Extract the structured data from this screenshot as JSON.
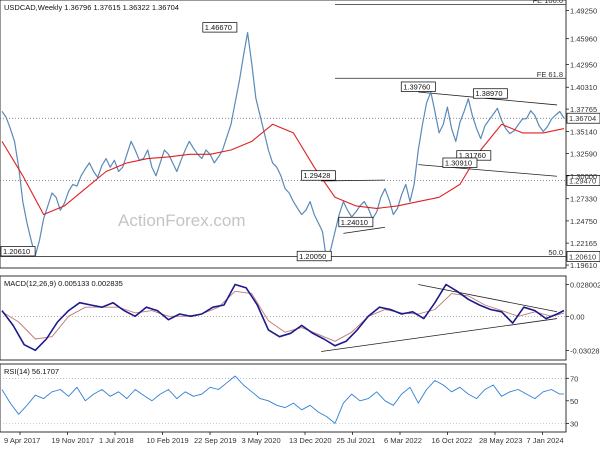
{
  "header": {
    "price": "USDCAD,Weekly  1.36796 1.37615 1.36322 1.36704",
    "macd": "MACD(12,26,9) 0.005133 0.002835",
    "rsi": "RSI(14) 56.1707"
  },
  "watermark": "ActionForex.com",
  "colors": {
    "price_line": "#5a8ab8",
    "ma_line": "#e02020",
    "macd_line": "#1a1a8c",
    "signal_line": "#c07878",
    "rsi_line": "#2f80d6",
    "trend_line": "#222222",
    "fib_line": "#444444"
  },
  "chart_data": [
    {
      "type": "line",
      "pane": "price",
      "series": [
        {
          "role": "price",
          "x": [
            0,
            3,
            6,
            9,
            12,
            15,
            18,
            21,
            24,
            27,
            30,
            33,
            36,
            39,
            42,
            45,
            48,
            51,
            54,
            57,
            60,
            63,
            66,
            69,
            72,
            75,
            78,
            81,
            84,
            87,
            90,
            93,
            96,
            99,
            102,
            105,
            108,
            111,
            114,
            117,
            120,
            123,
            126,
            129,
            132,
            135,
            138,
            141,
            144,
            147,
            150,
            153,
            156,
            159,
            162,
            165,
            168,
            171,
            174,
            177,
            180,
            183,
            186,
            189,
            192,
            195,
            198,
            201,
            204,
            207,
            210,
            213,
            216,
            219,
            222,
            225,
            228,
            231,
            234,
            237,
            240,
            243,
            246,
            249,
            252,
            255,
            258,
            261,
            264,
            267,
            270,
            273,
            276,
            279,
            282,
            285,
            288,
            291,
            294,
            297,
            300,
            303,
            306,
            309,
            312,
            315,
            318,
            321,
            324,
            327,
            330,
            333,
            336,
            339,
            342,
            345,
            348,
            351,
            354,
            357,
            360,
            363,
            366,
            369,
            372,
            375,
            378,
            381,
            384,
            387,
            390,
            393,
            396,
            399,
            402,
            405
          ],
          "values": [
            1.375,
            1.368,
            1.355,
            1.34,
            1.31,
            1.27,
            1.245,
            1.225,
            1.207,
            1.225,
            1.25,
            1.265,
            1.28,
            1.275,
            1.26,
            1.268,
            1.282,
            1.29,
            1.288,
            1.3,
            1.308,
            1.315,
            1.305,
            1.298,
            1.312,
            1.32,
            1.31,
            1.318,
            1.305,
            1.31,
            1.325,
            1.34,
            1.33,
            1.318,
            1.32,
            1.33,
            1.31,
            1.3,
            1.315,
            1.33,
            1.325,
            1.315,
            1.305,
            1.318,
            1.33,
            1.34,
            1.332,
            1.325,
            1.32,
            1.33,
            1.325,
            1.315,
            1.322,
            1.33,
            1.345,
            1.36,
            1.385,
            1.41,
            1.44,
            1.4667,
            1.43,
            1.39,
            1.37,
            1.35,
            1.33,
            1.315,
            1.31,
            1.3,
            1.285,
            1.28,
            1.27,
            1.262,
            1.255,
            1.26,
            1.27,
            1.255,
            1.245,
            1.235,
            1.2005,
            1.215,
            1.235,
            1.255,
            1.27,
            1.26,
            1.252,
            1.258,
            1.265,
            1.27,
            1.262,
            1.25,
            1.258,
            1.275,
            1.285,
            1.272,
            1.255,
            1.262,
            1.278,
            1.29,
            1.27,
            1.29,
            1.33,
            1.36,
            1.385,
            1.3976,
            1.375,
            1.35,
            1.36,
            1.38,
            1.355,
            1.34,
            1.362,
            1.375,
            1.3897,
            1.37,
            1.355,
            1.3432,
            1.3581,
            1.3651,
            1.3715,
            1.3786,
            1.3645,
            1.3551,
            1.3491,
            1.3524,
            1.3594,
            1.3661,
            1.3665,
            1.3758,
            1.3702,
            1.3584,
            1.3516,
            1.3571,
            1.3661,
            1.3708,
            1.3749,
            1.367
          ]
        },
        {
          "role": "moving_average",
          "x": [
            0,
            15,
            30,
            45,
            60,
            75,
            90,
            105,
            120,
            135,
            150,
            165,
            180,
            195,
            210,
            225,
            240,
            255,
            270,
            285,
            300,
            315,
            330,
            345,
            360,
            375,
            390,
            405
          ],
          "values": [
            1.34,
            1.3,
            1.255,
            1.265,
            1.285,
            1.305,
            1.315,
            1.32,
            1.322,
            1.325,
            1.325,
            1.33,
            1.34,
            1.36,
            1.35,
            1.31,
            1.275,
            1.265,
            1.262,
            1.265,
            1.27,
            1.275,
            1.29,
            1.33,
            1.36,
            1.35,
            1.35,
            1.355
          ]
        }
      ],
      "ylim": [
        1.195,
        1.5
      ],
      "y_ticks": [
        "1.49250",
        "1.45960",
        "1.42950",
        "1.40310",
        "1.37765",
        "1.35140",
        "1.32590",
        "1.30000",
        "1.27330",
        "1.24750",
        "1.22165",
        "1.19610"
      ],
      "horizontal_levels": [
        {
          "label": "FE 100.0",
          "value": 1.4995,
          "style": "solid"
        },
        {
          "label": "FE 61.8",
          "value": 1.4135,
          "style": "solid"
        },
        {
          "label": "1.36704",
          "value": 1.36704,
          "style": "dotted",
          "boxed": true
        },
        {
          "label": "1.29470",
          "value": 1.2947,
          "style": "dotted",
          "boxed": true
        },
        {
          "label": "50.0",
          "value": 1.2061,
          "style": "solid"
        },
        {
          "label": "1.20610",
          "value": 1.2061,
          "style": "solid",
          "boxed": true
        }
      ],
      "annotations": [
        {
          "text": "1.46670",
          "value": 1.4667
        },
        {
          "text": "1.39760",
          "value": 1.3976
        },
        {
          "text": "1.38970",
          "value": 1.3897
        },
        {
          "text": "1.29428",
          "value": 1.29428
        },
        {
          "text": "1.31760",
          "value": 1.3176
        },
        {
          "text": "1.30910",
          "value": 1.3091
        },
        {
          "text": "1.24010",
          "value": 1.2401
        },
        {
          "text": "1.20050",
          "value": 1.2005
        },
        {
          "text": "1.20610",
          "value": 1.2061
        }
      ],
      "x_tick_labels": [
        "9 Apr 2017",
        "19 Nov 2017",
        "1 Jul 2018",
        "10 Feb 2019",
        "22 Sep 2019",
        "3 May 2020",
        "13 Dec 2020",
        "25 Jul 2021",
        "6 Mar 2022",
        "16 Oct 2022",
        "28 May 2023",
        "7 Jan 2024"
      ]
    },
    {
      "type": "line",
      "pane": "macd",
      "series": [
        {
          "role": "macd",
          "x": [
            0,
            8,
            16,
            24,
            32,
            40,
            48,
            56,
            64,
            72,
            80,
            88,
            96,
            104,
            112,
            120,
            128,
            136,
            144,
            152,
            160,
            168,
            176,
            184,
            192,
            200,
            208,
            216,
            224,
            232,
            240,
            248,
            256,
            264,
            272,
            280,
            288,
            296,
            304,
            312,
            320,
            328,
            336,
            344,
            352,
            360,
            368,
            376,
            384,
            392,
            400,
            405
          ],
          "values": [
            0.005,
            -0.008,
            -0.025,
            -0.03,
            -0.02,
            -0.005,
            0.005,
            0.012,
            0.01,
            0.008,
            0.012,
            0.005,
            0.0,
            0.008,
            0.005,
            -0.003,
            0.002,
            0.0,
            0.002,
            0.008,
            0.01,
            0.028,
            0.025,
            0.01,
            -0.012,
            -0.018,
            -0.015,
            -0.008,
            -0.015,
            -0.02,
            -0.026,
            -0.022,
            -0.012,
            0.0,
            0.008,
            0.006,
            0.002,
            0.004,
            -0.002,
            0.012,
            0.028,
            0.022,
            0.015,
            0.01,
            0.006,
            0.004,
            -0.006,
            0.008,
            0.005,
            -0.002,
            0.002,
            0.005133
          ]
        },
        {
          "role": "signal",
          "x": [
            0,
            12,
            24,
            36,
            48,
            60,
            72,
            84,
            96,
            108,
            120,
            132,
            144,
            156,
            168,
            180,
            192,
            204,
            216,
            228,
            240,
            252,
            264,
            276,
            288,
            300,
            312,
            324,
            336,
            348,
            360,
            372,
            384,
            396,
            405
          ],
          "values": [
            0.004,
            -0.005,
            -0.02,
            -0.018,
            0.0,
            0.008,
            0.008,
            0.008,
            0.003,
            0.005,
            0.0,
            0.0,
            0.002,
            0.008,
            0.022,
            0.02,
            -0.004,
            -0.014,
            -0.01,
            -0.016,
            -0.022,
            -0.014,
            0.0,
            0.006,
            0.003,
            0.002,
            0.006,
            0.02,
            0.018,
            0.01,
            0.005,
            0.0,
            0.004,
            0.0,
            0.002835
          ]
        }
      ],
      "ylim": [
        -0.035,
        0.032
      ],
      "y_ticks": [
        "0.028002",
        "0.00",
        "-0.030286"
      ]
    },
    {
      "type": "line",
      "pane": "rsi",
      "series": [
        {
          "role": "rsi",
          "x": [
            0,
            6,
            12,
            18,
            24,
            30,
            36,
            42,
            48,
            54,
            60,
            66,
            72,
            78,
            84,
            90,
            96,
            102,
            108,
            114,
            120,
            126,
            132,
            138,
            144,
            150,
            156,
            162,
            168,
            174,
            180,
            186,
            192,
            198,
            204,
            210,
            216,
            222,
            228,
            234,
            240,
            246,
            252,
            258,
            264,
            270,
            276,
            282,
            288,
            294,
            300,
            306,
            312,
            318,
            324,
            330,
            336,
            342,
            348,
            354,
            360,
            366,
            372,
            378,
            384,
            390,
            396,
            402,
            405
          ],
          "values": [
            60,
            48,
            38,
            46,
            55,
            52,
            58,
            60,
            54,
            62,
            50,
            56,
            60,
            54,
            58,
            52,
            60,
            55,
            50,
            56,
            60,
            52,
            58,
            54,
            56,
            62,
            60,
            66,
            72,
            64,
            58,
            52,
            50,
            46,
            44,
            48,
            42,
            46,
            40,
            36,
            30,
            48,
            56,
            50,
            52,
            58,
            50,
            46,
            56,
            62,
            48,
            60,
            68,
            64,
            58,
            62,
            56,
            52,
            60,
            64,
            54,
            58,
            60,
            56,
            52,
            58,
            60,
            56,
            56.17
          ]
        }
      ],
      "ylim": [
        25,
        80
      ],
      "y_ticks": [
        "70",
        "50",
        "30"
      ],
      "levels": [
        70,
        30
      ]
    }
  ]
}
